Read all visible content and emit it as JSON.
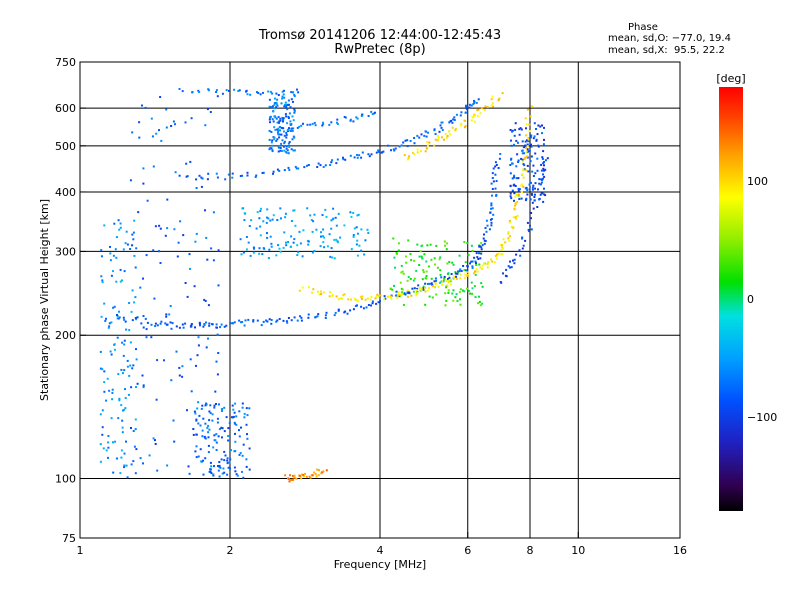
{
  "header": {
    "title": "Tromsø 20141206 12:44:00-12:45:43",
    "subtitle": "RwPretec (8p)"
  },
  "phase_info": {
    "heading": "Phase",
    "line_o": "mean, sd,O: −77.0, 19.4",
    "line_x": "mean, sd,X:  95.5, 22.2"
  },
  "colorbar": {
    "label": "[deg]",
    "range": [
      -180,
      180
    ],
    "ticks": [
      {
        "value": 100,
        "label": "100"
      },
      {
        "value": 0,
        "label": "0"
      },
      {
        "value": -100,
        "label": "−100"
      }
    ]
  },
  "chart_data": {
    "type": "scatter",
    "xlabel": "Frequency [MHz]",
    "ylabel": "Stationary phase Virtual Height [km]",
    "xscale": "log",
    "yscale": "log",
    "xlim": [
      1,
      16
    ],
    "ylim": [
      75,
      750
    ],
    "xticks": [
      {
        "value": 1,
        "label": "1"
      },
      {
        "value": 2,
        "label": "2"
      },
      {
        "value": 4,
        "label": "4"
      },
      {
        "value": 6,
        "label": "6"
      },
      {
        "value": 8,
        "label": "8"
      },
      {
        "value": 10,
        "label": "10"
      },
      {
        "value": 16,
        "label": "16"
      }
    ],
    "yticks": [
      {
        "value": 750,
        "label": "750"
      },
      {
        "value": 600,
        "label": "600"
      },
      {
        "value": 500,
        "label": "500"
      },
      {
        "value": 400,
        "label": "400"
      },
      {
        "value": 300,
        "label": "300"
      },
      {
        "value": 200,
        "label": "200"
      },
      {
        "value": 100,
        "label": "100"
      },
      {
        "value": 75,
        "label": "75"
      }
    ],
    "grid": true,
    "colors": {
      "o_mode": "#1f3fd6",
      "x_mode": "#e6d800"
    },
    "traces": [
      {
        "mode": "O",
        "phase": -85,
        "points": [
          [
            1.18,
            219
          ],
          [
            1.4,
            212
          ],
          [
            1.6,
            209
          ],
          [
            1.8,
            210
          ],
          [
            2.0,
            211
          ],
          [
            2.3,
            213
          ],
          [
            2.6,
            215
          ],
          [
            3.0,
            219
          ],
          [
            3.5,
            226
          ],
          [
            4.0,
            236
          ],
          [
            4.5,
            246
          ],
          [
            5.0,
            255
          ],
          [
            5.5,
            265
          ],
          [
            6.0,
            278
          ],
          [
            6.3,
            292
          ],
          [
            6.5,
            320
          ],
          [
            6.7,
            360
          ],
          [
            6.8,
            420
          ],
          [
            6.9,
            480
          ]
        ]
      },
      {
        "mode": "O",
        "phase": -80,
        "points": [
          [
            1.6,
            430
          ],
          [
            2.0,
            432
          ],
          [
            2.5,
            440
          ],
          [
            3.0,
            455
          ],
          [
            3.5,
            470
          ],
          [
            4.0,
            485
          ],
          [
            4.5,
            505
          ],
          [
            5.0,
            530
          ],
          [
            5.5,
            560
          ],
          [
            6.0,
            600
          ],
          [
            6.3,
            630
          ]
        ]
      },
      {
        "mode": "O",
        "phase": -70,
        "points": [
          [
            2.6,
            540
          ],
          [
            3.0,
            555
          ],
          [
            3.5,
            570
          ],
          [
            4.0,
            590
          ]
        ]
      },
      {
        "mode": "O",
        "phase": -95,
        "points": [
          [
            7.0,
            260
          ],
          [
            7.5,
            290
          ],
          [
            8.0,
            340
          ],
          [
            8.4,
            420
          ],
          [
            8.6,
            480
          ]
        ]
      },
      {
        "mode": "O",
        "phase": -70,
        "points": [
          [
            1.6,
            650
          ],
          [
            2.0,
            648
          ],
          [
            2.4,
            648
          ],
          [
            2.8,
            650
          ]
        ]
      },
      {
        "mode": "X",
        "phase": 95,
        "points": [
          [
            2.8,
            250
          ],
          [
            3.2,
            242
          ],
          [
            3.6,
            238
          ],
          [
            4.0,
            240
          ],
          [
            4.5,
            244
          ],
          [
            5.0,
            250
          ],
          [
            5.5,
            258
          ],
          [
            6.0,
            268
          ],
          [
            6.5,
            280
          ],
          [
            7.0,
            300
          ],
          [
            7.3,
            330
          ],
          [
            7.5,
            370
          ],
          [
            7.7,
            420
          ],
          [
            7.9,
            500
          ],
          [
            8.0,
            620
          ]
        ]
      },
      {
        "mode": "X",
        "phase": 100,
        "points": [
          [
            4.5,
            470
          ],
          [
            5.0,
            500
          ],
          [
            5.5,
            530
          ],
          [
            6.0,
            560
          ],
          [
            6.5,
            600
          ],
          [
            7.0,
            640
          ]
        ]
      },
      {
        "mode": "X",
        "phase": 130,
        "points": [
          [
            2.6,
            100
          ],
          [
            2.7,
            101
          ],
          [
            2.9,
            102
          ],
          [
            3.1,
            104
          ]
        ]
      }
    ],
    "clusters": [
      {
        "phase": -80,
        "x": [
          1.25,
          1.9
        ],
        "y": [
          100,
          640
        ]
      },
      {
        "phase": -60,
        "x": [
          1.1,
          1.3
        ],
        "y": [
          100,
          350
        ]
      },
      {
        "phase": -50,
        "x": [
          2.1,
          3.8
        ],
        "y": [
          290,
          370
        ]
      },
      {
        "phase": -75,
        "x": [
          1.7,
          2.2
        ],
        "y": [
          100,
          145
        ]
      },
      {
        "phase": -70,
        "x": [
          2.4,
          2.7
        ],
        "y": [
          480,
          640
        ]
      },
      {
        "phase": -90,
        "x": [
          7.3,
          8.6
        ],
        "y": [
          380,
          560
        ]
      },
      {
        "phase": 20,
        "x": [
          4.2,
          6.5
        ],
        "y": [
          230,
          320
        ]
      }
    ]
  }
}
